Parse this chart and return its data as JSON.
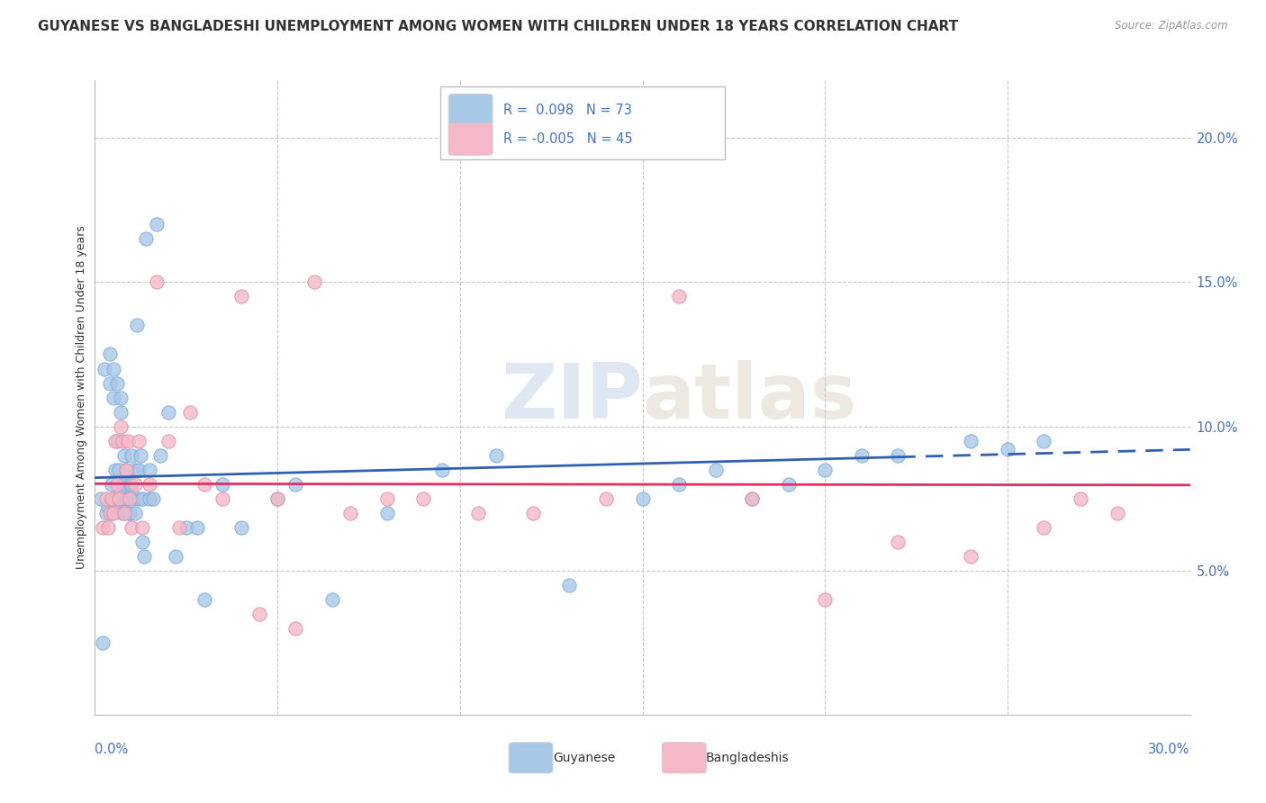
{
  "title": "GUYANESE VS BANGLADESHI UNEMPLOYMENT AMONG WOMEN WITH CHILDREN UNDER 18 YEARS CORRELATION CHART",
  "source": "Source: ZipAtlas.com",
  "ylabel": "Unemployment Among Women with Children Under 18 years",
  "xlim": [
    0.0,
    30.0
  ],
  "ylim": [
    0.0,
    22.0
  ],
  "yticks": [
    5.0,
    10.0,
    15.0,
    20.0
  ],
  "watermark": "ZIPatlas",
  "guyanese_color": "#a8c8e8",
  "bangladeshi_color": "#f4b8c8",
  "guyanese_R": 0.098,
  "guyanese_N": 73,
  "bangladeshi_R": -0.005,
  "bangladeshi_N": 45,
  "guyanese_x": [
    0.15,
    0.2,
    0.25,
    0.3,
    0.35,
    0.4,
    0.4,
    0.45,
    0.45,
    0.5,
    0.5,
    0.5,
    0.55,
    0.55,
    0.6,
    0.6,
    0.65,
    0.65,
    0.7,
    0.7,
    0.75,
    0.75,
    0.8,
    0.8,
    0.85,
    0.85,
    0.9,
    0.9,
    0.95,
    0.95,
    1.0,
    1.0,
    1.05,
    1.1,
    1.1,
    1.15,
    1.2,
    1.2,
    1.25,
    1.3,
    1.3,
    1.35,
    1.4,
    1.5,
    1.5,
    1.6,
    1.7,
    1.8,
    2.0,
    2.2,
    2.5,
    2.8,
    3.0,
    3.5,
    4.0,
    5.0,
    5.5,
    6.5,
    8.0,
    9.5,
    11.0,
    13.0,
    15.0,
    16.0,
    17.0,
    18.0,
    19.0,
    20.0,
    21.0,
    22.0,
    24.0,
    25.0,
    26.0
  ],
  "guyanese_y": [
    7.5,
    2.5,
    12.0,
    7.0,
    7.2,
    12.5,
    11.5,
    7.0,
    8.0,
    7.5,
    12.0,
    11.0,
    7.2,
    8.5,
    11.5,
    9.5,
    7.5,
    8.5,
    11.0,
    10.5,
    7.0,
    8.0,
    9.0,
    8.0,
    7.5,
    8.5,
    7.0,
    7.5,
    8.0,
    7.0,
    9.0,
    8.0,
    7.5,
    8.5,
    7.0,
    13.5,
    7.5,
    8.5,
    9.0,
    6.0,
    7.5,
    5.5,
    16.5,
    7.5,
    8.5,
    7.5,
    17.0,
    9.0,
    10.5,
    5.5,
    6.5,
    6.5,
    4.0,
    8.0,
    6.5,
    7.5,
    8.0,
    4.0,
    7.0,
    8.5,
    9.0,
    4.5,
    7.5,
    8.0,
    8.5,
    7.5,
    8.0,
    8.5,
    9.0,
    9.0,
    9.5,
    9.2,
    9.5
  ],
  "bangladeshi_x": [
    0.2,
    0.3,
    0.35,
    0.4,
    0.45,
    0.5,
    0.55,
    0.6,
    0.65,
    0.7,
    0.75,
    0.8,
    0.85,
    0.9,
    0.95,
    1.0,
    1.1,
    1.2,
    1.3,
    1.5,
    1.7,
    2.0,
    2.3,
    2.6,
    3.0,
    3.5,
    4.0,
    4.5,
    5.0,
    5.5,
    6.0,
    7.0,
    8.0,
    9.0,
    10.5,
    12.0,
    14.0,
    16.0,
    18.0,
    20.0,
    22.0,
    24.0,
    26.0,
    27.0,
    28.0
  ],
  "bangladeshi_y": [
    6.5,
    7.5,
    6.5,
    7.0,
    7.5,
    7.0,
    9.5,
    8.0,
    7.5,
    10.0,
    9.5,
    7.0,
    8.5,
    9.5,
    7.5,
    6.5,
    8.0,
    9.5,
    6.5,
    8.0,
    15.0,
    9.5,
    6.5,
    10.5,
    8.0,
    7.5,
    14.5,
    3.5,
    7.5,
    3.0,
    15.0,
    7.0,
    7.5,
    7.5,
    7.0,
    7.0,
    7.5,
    14.5,
    7.5,
    4.0,
    6.0,
    5.5,
    6.5,
    7.5,
    7.0
  ],
  "title_fontsize": 11,
  "axis_label_fontsize": 9,
  "tick_fontsize": 10.5,
  "title_color": "#333333",
  "axis_color": "#4472c4",
  "grid_color": "#c8c8c8",
  "bg_color": "#ffffff",
  "guyanese_line_color": "#3060b0",
  "bangladeshi_line_color": "#e03060"
}
